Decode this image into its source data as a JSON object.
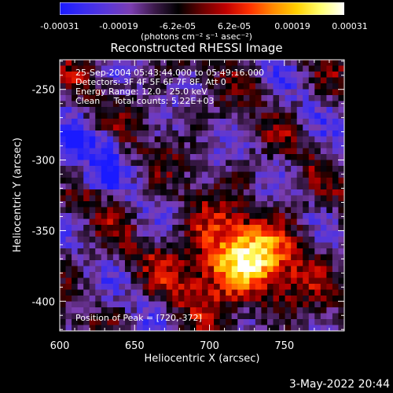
{
  "colorbar": {
    "colors": [
      "#1a1aff",
      "#3a2cf0",
      "#5a37d8",
      "#7b3db0",
      "#3c1a4a",
      "#000000",
      "#6a0000",
      "#c00000",
      "#ff3000",
      "#ff8a00",
      "#ffd000",
      "#ffff70",
      "#ffffff"
    ],
    "ticks": [
      "-0.00031",
      "-0.00019",
      "-6.2e-05",
      "6.2e-05",
      "0.00019",
      "0.00031"
    ],
    "units": "(photons cm⁻² s⁻¹ asec⁻²)"
  },
  "chart_data": {
    "type": "heatmap",
    "title": "Reconstructed RHESSI Image",
    "xlabel": "Heliocentric X (arcsec)",
    "ylabel": "Heliocentric Y (arcsec)",
    "xlim": [
      600,
      790
    ],
    "ylim": [
      -421,
      -229
    ],
    "value_range": [
      -0.00031,
      0.00031
    ],
    "x_ticks": [
      600,
      650,
      700,
      750
    ],
    "y_ticks": [
      -250,
      -300,
      -350,
      -400
    ],
    "x_tick_labels": [
      "600",
      "650",
      "700",
      "750"
    ],
    "y_tick_labels": [
      "-250",
      "-300",
      "-350",
      "-400"
    ],
    "peak": [
      720,
      -372
    ],
    "annotations": [
      "25-Sep-2004 05:43:44.000 to 05:49:16.000",
      "Detectors: 3F 4F 5F 6F 7F 8F, Att 0",
      "Energy Range: 12.0 - 25.0 keV",
      "Clean     Total counts: 5.22E+03"
    ],
    "peak_label": "Position of Peak = [720,-372]"
  },
  "footer": {
    "date": "3-May-2022 20:44"
  }
}
